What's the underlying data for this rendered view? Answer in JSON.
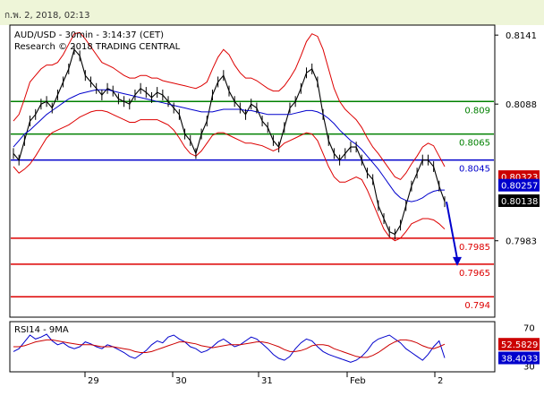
{
  "header": {
    "timestamp": "ก.พ. 2, 2018, 02:13"
  },
  "chart_data": {
    "type": "line",
    "title": "AUD/USD - 30min - 3:14:37 (CET)",
    "subtitle": "Research © 2018 TRADING CENTRAL",
    "x_tick_labels": [
      "29",
      "30",
      "31",
      "Feb",
      "2"
    ],
    "y_tick_labels": [
      "0.8141",
      "0.8088",
      "0.7983"
    ],
    "ylim": [
      0.7925,
      0.8148
    ],
    "grid": false,
    "levels": [
      {
        "label": "0.809",
        "value": 0.809,
        "color": "#008000"
      },
      {
        "label": "0.8065",
        "value": 0.8065,
        "color": "#008000"
      },
      {
        "label": "0.8045",
        "value": 0.8045,
        "color": "#0000cc"
      },
      {
        "label": "0.7985",
        "value": 0.7985,
        "color": "#dd0000"
      },
      {
        "label": "0.7965",
        "value": 0.7965,
        "color": "#dd0000"
      },
      {
        "label": "0.794",
        "value": 0.794,
        "color": "#dd0000"
      }
    ],
    "price_tags": [
      {
        "label": "0.80323",
        "value": 0.80323,
        "color": "#cc0000"
      },
      {
        "label": "0.80257",
        "value": 0.80257,
        "color": "#0000cc"
      },
      {
        "label": "0.80138",
        "value": 0.80138,
        "color": "#000000"
      }
    ],
    "price_series": [
      {
        "name": "price",
        "color": "#000000",
        "values": [
          0.805,
          0.8045,
          0.806,
          0.8075,
          0.808,
          0.8088,
          0.809,
          0.8085,
          0.8095,
          0.8105,
          0.8115,
          0.813,
          0.8125,
          0.811,
          0.8105,
          0.81,
          0.8095,
          0.81,
          0.8098,
          0.8092,
          0.809,
          0.8088,
          0.8095,
          0.81,
          0.8097,
          0.8093,
          0.8097,
          0.8095,
          0.809,
          0.8085,
          0.808,
          0.8065,
          0.806,
          0.805,
          0.8065,
          0.8075,
          0.8095,
          0.8105,
          0.811,
          0.8098,
          0.809,
          0.8085,
          0.808,
          0.8088,
          0.8085,
          0.8075,
          0.807,
          0.806,
          0.8055,
          0.807,
          0.8085,
          0.809,
          0.81,
          0.8112,
          0.8115,
          0.8105,
          0.808,
          0.806,
          0.805,
          0.8045,
          0.805,
          0.8055,
          0.8055,
          0.8045,
          0.8035,
          0.803,
          0.801,
          0.8,
          0.799,
          0.7988,
          0.7995,
          0.801,
          0.8025,
          0.8035,
          0.8045,
          0.8045,
          0.804,
          0.8025,
          0.8013
        ]
      },
      {
        "name": "moving average",
        "color": "#0000cc",
        "values": [
          0.8055,
          0.806,
          0.8065,
          0.8068,
          0.8072,
          0.8076,
          0.808,
          0.8083,
          0.8086,
          0.8089,
          0.8092,
          0.8094,
          0.8096,
          0.8097,
          0.8098,
          0.8099,
          0.8099,
          0.8099,
          0.8098,
          0.8097,
          0.8096,
          0.8095,
          0.8094,
          0.8093,
          0.8092,
          0.8091,
          0.809,
          0.8089,
          0.8088,
          0.8087,
          0.8086,
          0.8085,
          0.8084,
          0.8083,
          0.8082,
          0.8082,
          0.8082,
          0.8083,
          0.8084,
          0.8084,
          0.8084,
          0.8084,
          0.8083,
          0.8083,
          0.8082,
          0.8081,
          0.808,
          0.808,
          0.808,
          0.808,
          0.808,
          0.8081,
          0.8082,
          0.8083,
          0.8083,
          0.8082,
          0.808,
          0.8077,
          0.8073,
          0.8068,
          0.8064,
          0.806,
          0.8057,
          0.8053,
          0.8048,
          0.8043,
          0.8038,
          0.8032,
          0.8026,
          0.802,
          0.8016,
          0.8014,
          0.8013,
          0.8014,
          0.8016,
          0.8019,
          0.8021,
          0.8022,
          0.8022
        ]
      },
      {
        "name": "upper band",
        "color": "#dd0000",
        "values": [
          0.8075,
          0.808,
          0.8092,
          0.8105,
          0.811,
          0.8115,
          0.8118,
          0.8118,
          0.812,
          0.8126,
          0.8134,
          0.8142,
          0.8143,
          0.8138,
          0.8132,
          0.8126,
          0.812,
          0.8118,
          0.8116,
          0.8113,
          0.811,
          0.8108,
          0.8108,
          0.811,
          0.811,
          0.8108,
          0.8108,
          0.8106,
          0.8105,
          0.8104,
          0.8103,
          0.8102,
          0.8101,
          0.81,
          0.8102,
          0.8105,
          0.8115,
          0.8124,
          0.813,
          0.8126,
          0.8118,
          0.8112,
          0.8108,
          0.8108,
          0.8106,
          0.8103,
          0.81,
          0.8098,
          0.8098,
          0.8102,
          0.8108,
          0.8115,
          0.8125,
          0.8136,
          0.8142,
          0.814,
          0.813,
          0.8115,
          0.81,
          0.809,
          0.8084,
          0.808,
          0.8076,
          0.807,
          0.8062,
          0.8055,
          0.805,
          0.8044,
          0.8038,
          0.8032,
          0.803,
          0.8035,
          0.8042,
          0.8048,
          0.8055,
          0.8058,
          0.8056,
          0.8048,
          0.804
        ]
      },
      {
        "name": "lower band",
        "color": "#dd0000",
        "values": [
          0.804,
          0.8035,
          0.8038,
          0.8042,
          0.8048,
          0.8055,
          0.8062,
          0.8066,
          0.8068,
          0.807,
          0.8072,
          0.8075,
          0.8078,
          0.808,
          0.8082,
          0.8083,
          0.8083,
          0.8082,
          0.808,
          0.8078,
          0.8076,
          0.8074,
          0.8074,
          0.8076,
          0.8076,
          0.8076,
          0.8076,
          0.8074,
          0.8072,
          0.8068,
          0.8062,
          0.8055,
          0.805,
          0.8048,
          0.8052,
          0.8058,
          0.8064,
          0.8066,
          0.8066,
          0.8064,
          0.8062,
          0.806,
          0.8058,
          0.8058,
          0.8057,
          0.8056,
          0.8054,
          0.8052,
          0.8054,
          0.8058,
          0.806,
          0.8062,
          0.8064,
          0.8066,
          0.8065,
          0.806,
          0.805,
          0.804,
          0.8032,
          0.8028,
          0.8028,
          0.803,
          0.8032,
          0.803,
          0.8022,
          0.8012,
          0.8002,
          0.7992,
          0.7986,
          0.7983,
          0.7985,
          0.799,
          0.7996,
          0.7998,
          0.8,
          0.8,
          0.7999,
          0.7996,
          0.7992
        ]
      }
    ],
    "forecast_arrow": {
      "from": 0.8013,
      "to": 0.7965,
      "color": "#0000cc"
    },
    "rsi": {
      "title": "RSI14 - 9MA",
      "y_tick_labels": [
        "70",
        "30"
      ],
      "ylim": [
        25,
        75
      ],
      "tags": [
        {
          "label": "52.5829",
          "value": 52.5829,
          "color": "#cc0000"
        },
        {
          "label": "38.4033",
          "value": 38.4033,
          "color": "#0000cc"
        }
      ],
      "series": [
        {
          "name": "rsi",
          "color": "#0000cc",
          "values": [
            45,
            48,
            55,
            62,
            58,
            60,
            63,
            56,
            52,
            54,
            50,
            48,
            50,
            55,
            53,
            50,
            48,
            52,
            50,
            47,
            44,
            40,
            38,
            42,
            46,
            52,
            56,
            54,
            60,
            62,
            58,
            55,
            50,
            48,
            44,
            46,
            50,
            55,
            58,
            54,
            50,
            52,
            56,
            60,
            58,
            53,
            48,
            42,
            38,
            36,
            40,
            48,
            54,
            58,
            56,
            50,
            45,
            42,
            40,
            38,
            36,
            34,
            36,
            40,
            46,
            54,
            58,
            60,
            62,
            58,
            54,
            48,
            44,
            40,
            36,
            42,
            50,
            56,
            38.4
          ]
        },
        {
          "name": "9MA",
          "color": "#cc0000",
          "values": [
            50,
            50,
            51,
            53,
            55,
            56,
            57,
            57,
            56,
            55,
            54,
            53,
            52,
            52,
            52,
            51,
            50,
            50,
            50,
            49,
            48,
            47,
            45,
            44,
            44,
            45,
            47,
            49,
            51,
            53,
            55,
            55,
            54,
            53,
            51,
            50,
            49,
            50,
            51,
            52,
            52,
            52,
            53,
            54,
            55,
            55,
            54,
            52,
            50,
            47,
            45,
            45,
            46,
            48,
            51,
            52,
            52,
            51,
            48,
            46,
            44,
            42,
            40,
            39,
            39,
            41,
            44,
            48,
            52,
            55,
            57,
            57,
            56,
            54,
            51,
            49,
            48,
            50,
            52.6
          ]
        }
      ]
    }
  }
}
